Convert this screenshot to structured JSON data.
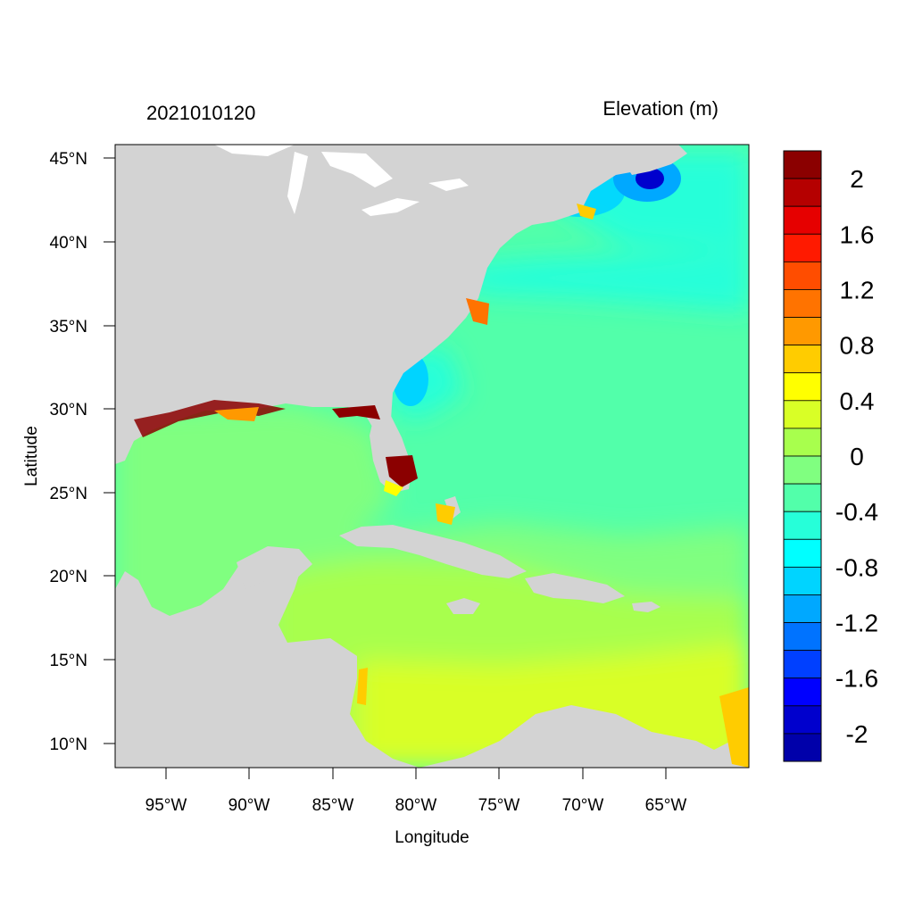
{
  "map": {
    "timestamp": "2021010120",
    "variable_title": "Elevation (m)",
    "x_axis_label": "Longitude",
    "y_axis_label": "Latitude",
    "lon_ticks": [
      "95°W",
      "90°W",
      "85°W",
      "80°W",
      "75°W",
      "70°W",
      "65°W"
    ],
    "lat_ticks": [
      "45°N",
      "40°N",
      "35°N",
      "30°N",
      "25°N",
      "20°N",
      "15°N",
      "10°N"
    ],
    "land_color": "#d3d3d3",
    "colorbar": {
      "colors": [
        "#8b0000",
        "#b50000",
        "#e60000",
        "#ff1a00",
        "#ff4d00",
        "#ff7300",
        "#ff9900",
        "#ffcc00",
        "#ffff00",
        "#d9ff26",
        "#a8ff4d",
        "#80ff80",
        "#52ffaa",
        "#26ffd9",
        "#00ffff",
        "#00d4ff",
        "#00a8ff",
        "#0073ff",
        "#0040ff",
        "#0000ff",
        "#0000cd",
        "#0000aa"
      ],
      "labels": [
        "2",
        "1.6",
        "1.2",
        "0.8",
        "0.4",
        "0",
        "-0.4",
        "-0.8",
        "-1.2",
        "-1.6",
        "-2"
      ]
    }
  }
}
